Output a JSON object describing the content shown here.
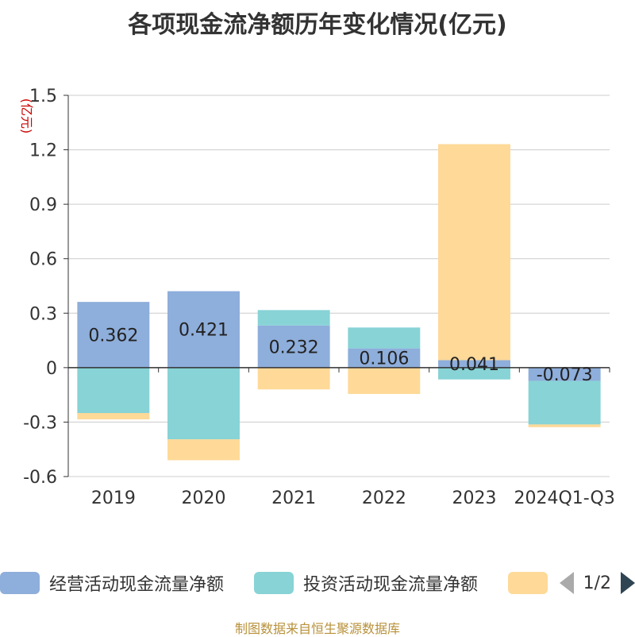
{
  "chart_data": {
    "type": "bar",
    "stacked": true,
    "title": "各项现金流净额历年变化情况(亿元)",
    "ylabel": "(亿元)",
    "ylim": [
      -0.6,
      1.5
    ],
    "yticks": [
      1.5,
      1.2,
      0.9,
      0.6,
      0.3,
      0,
      -0.3,
      -0.6
    ],
    "ytick_labels": [
      "1.5",
      "1.2",
      "0.9",
      "0.6",
      "0.3",
      "0",
      "-0.3",
      "-0.6"
    ],
    "grid": true,
    "categories": [
      "2019",
      "2020",
      "2021",
      "2022",
      "2023",
      "2024Q1-Q3"
    ],
    "series": [
      {
        "name": "经营活动现金流量净额",
        "color": "#8eaedb",
        "values": [
          0.362,
          0.421,
          0.232,
          0.106,
          0.041,
          -0.073
        ],
        "labels": [
          "0.362",
          "0.421",
          "0.232",
          "0.106",
          "0.041",
          "-0.073"
        ]
      },
      {
        "name": "投资活动现金流量净额",
        "color": "#87d3d6",
        "values": [
          -0.25,
          -0.395,
          0.085,
          0.115,
          -0.065,
          -0.24
        ]
      },
      {
        "name": "",
        "color": "#fed998",
        "values": [
          -0.035,
          -0.115,
          -0.12,
          -0.145,
          1.19,
          -0.015
        ]
      }
    ],
    "legend_position": "bottom"
  },
  "legend": {
    "page": "1/2"
  },
  "source": "制图数据来自恒生聚源数据库"
}
